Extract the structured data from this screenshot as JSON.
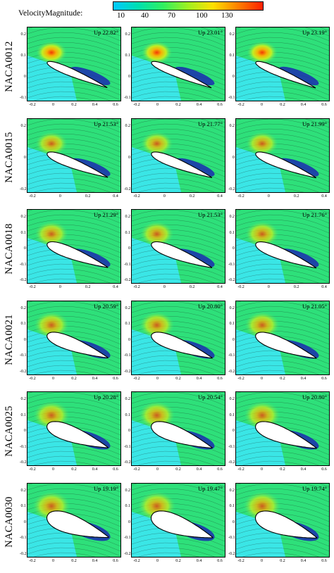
{
  "legend": {
    "title": "VelocityMagnitude:",
    "ticks": [
      "10",
      "40",
      "70",
      "100",
      "130"
    ],
    "colors": [
      "#00c8ff",
      "#00e0b0",
      "#30f060",
      "#a0f020",
      "#ffe000",
      "#ff8000",
      "#ff2000"
    ]
  },
  "colors": {
    "background_cyan": "#3ae6e6",
    "background_green": "#2ee07a",
    "field_lines": "#1a1a1a",
    "airfoil": "#ffffff",
    "separation": "#1a2ab0"
  },
  "rows": [
    {
      "label": "NACA0012",
      "thickness": 0.12,
      "panels": [
        {
          "up": "Up 22.82°"
        },
        {
          "up": "Up 23.01°"
        },
        {
          "up": "Up 23.19°"
        }
      ],
      "yticks": [
        "0.2",
        "0.1",
        "0",
        "-0.1"
      ],
      "xticks": [
        "-0.2",
        "0",
        "0.2",
        "0.4",
        "0.6"
      ]
    },
    {
      "label": "NACA0015",
      "thickness": 0.15,
      "panels": [
        {
          "up": "Up 21.53°"
        },
        {
          "up": "Up 21.77°"
        },
        {
          "up": "Up 21.99°"
        }
      ],
      "yticks": [
        "0.2",
        "0",
        "-0.2"
      ],
      "xticks": [
        "-0.2",
        "0",
        "0.2",
        "0.4"
      ]
    },
    {
      "label": "NACA0018",
      "thickness": 0.18,
      "panels": [
        {
          "up": "Up 21.29°"
        },
        {
          "up": "Up 21.53°"
        },
        {
          "up": "Up 21.76°"
        }
      ],
      "yticks": [
        "0.2",
        "0.1",
        "0",
        "-0.1",
        "-0.2"
      ],
      "xticks": [
        "-0.2",
        "0",
        "0.2",
        "0.4"
      ]
    },
    {
      "label": "NACA0021",
      "thickness": 0.21,
      "panels": [
        {
          "up": "Up 20.59°"
        },
        {
          "up": "Up 20.80°"
        },
        {
          "up": "Up 21.05°"
        }
      ],
      "yticks": [
        "0.2",
        "0.1",
        "0",
        "-0.1",
        "-0.2"
      ],
      "xticks": [
        "-0.2",
        "0",
        "0.2",
        "0.4",
        "0.6"
      ]
    },
    {
      "label": "NACA0025",
      "thickness": 0.25,
      "panels": [
        {
          "up": "Up 20.28°"
        },
        {
          "up": "Up 20.54°"
        },
        {
          "up": "Up 20.80°"
        }
      ],
      "yticks": [
        "0.2",
        "0.1",
        "0",
        "-0.1",
        "-0.2"
      ],
      "xticks": [
        "-0.2",
        "0",
        "0.2",
        "0.4",
        "0.6"
      ]
    },
    {
      "label": "NACA0030",
      "thickness": 0.3,
      "panels": [
        {
          "up": "Up 19.19°"
        },
        {
          "up": "Up 19.47°"
        },
        {
          "up": "Up 19.74°"
        }
      ],
      "yticks": [
        "0.2",
        "0.1",
        "0",
        "-0.1",
        "-0.2"
      ],
      "xticks": [
        "-0.2",
        "0",
        "0.2",
        "0.4",
        "0.6"
      ]
    }
  ]
}
